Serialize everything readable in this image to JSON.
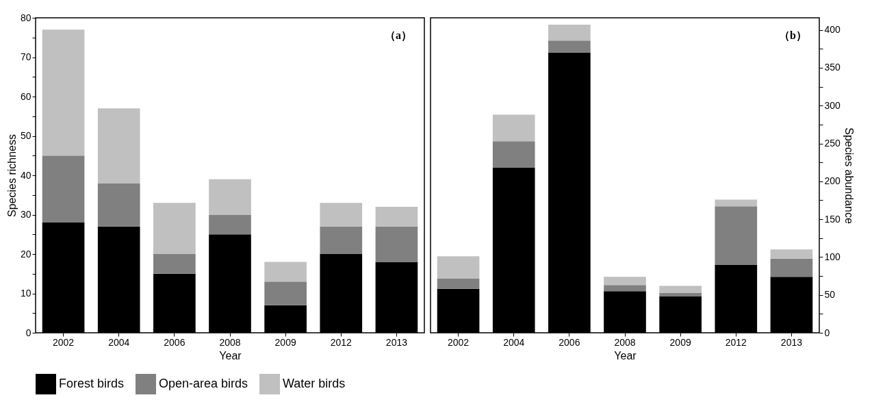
{
  "chart_data": [
    {
      "type": "bar",
      "stacked": true,
      "xlabel": "Year",
      "ylabel": "Species richness",
      "annotations": [
        "（a）"
      ],
      "legend": "bottom",
      "categories": [
        "2002",
        "2004",
        "2006",
        "2008",
        "2009",
        "2012",
        "2013"
      ],
      "ylim": [
        0,
        80
      ],
      "yticks": [
        0,
        {
          "value": 5,
          "label": null
        },
        10,
        {
          "value": 15,
          "label": null
        },
        20,
        {
          "value": 25,
          "label": null
        },
        30,
        {
          "value": 35,
          "label": null
        },
        40,
        {
          "value": 45,
          "label": null
        },
        50,
        {
          "value": 55,
          "label": null
        },
        60,
        {
          "value": 65,
          "label": null
        },
        70,
        {
          "value": 75,
          "label": null
        },
        80
      ],
      "series": [
        {
          "name": "Forest birds",
          "color": "#000000",
          "values": [
            28,
            27,
            15,
            25,
            7,
            20,
            18
          ]
        },
        {
          "name": "Open-area birds",
          "color": "#808080",
          "values": [
            17,
            11,
            5,
            5,
            6,
            7,
            9
          ]
        },
        {
          "name": "Water birds",
          "color": "#c0c0c0",
          "values": [
            32,
            19,
            13,
            9,
            5,
            6,
            5
          ]
        }
      ]
    },
    {
      "type": "bar",
      "stacked": true,
      "xlabel": "Year",
      "ylabel": "Species abundance",
      "annotations": [
        "（b）"
      ],
      "categories": [
        "2002",
        "2004",
        "2006",
        "2008",
        "2009",
        "2012",
        "2013"
      ],
      "ylim": [
        0,
        416
      ],
      "yticks": [
        0,
        {
          "value": 25,
          "label": null
        },
        50,
        {
          "value": 75,
          "label": null
        },
        100,
        {
          "value": 125,
          "label": null
        },
        150,
        {
          "value": 175,
          "label": null
        },
        200,
        {
          "value": 225,
          "label": null
        },
        250,
        {
          "value": 275,
          "label": null
        },
        300,
        {
          "value": 325,
          "label": null
        },
        350,
        {
          "value": 375,
          "label": null
        },
        400
      ],
      "series": [
        {
          "name": "Forest birds",
          "color": "#000000",
          "values": [
            58,
            218,
            370,
            55,
            48,
            90,
            74
          ]
        },
        {
          "name": "Open-area birds",
          "color": "#808080",
          "values": [
            14,
            35,
            16,
            8,
            5,
            77,
            24
          ]
        },
        {
          "name": "Water birds",
          "color": "#c0c0c0",
          "values": [
            29,
            35,
            21,
            11,
            9,
            9,
            12
          ]
        }
      ]
    }
  ]
}
